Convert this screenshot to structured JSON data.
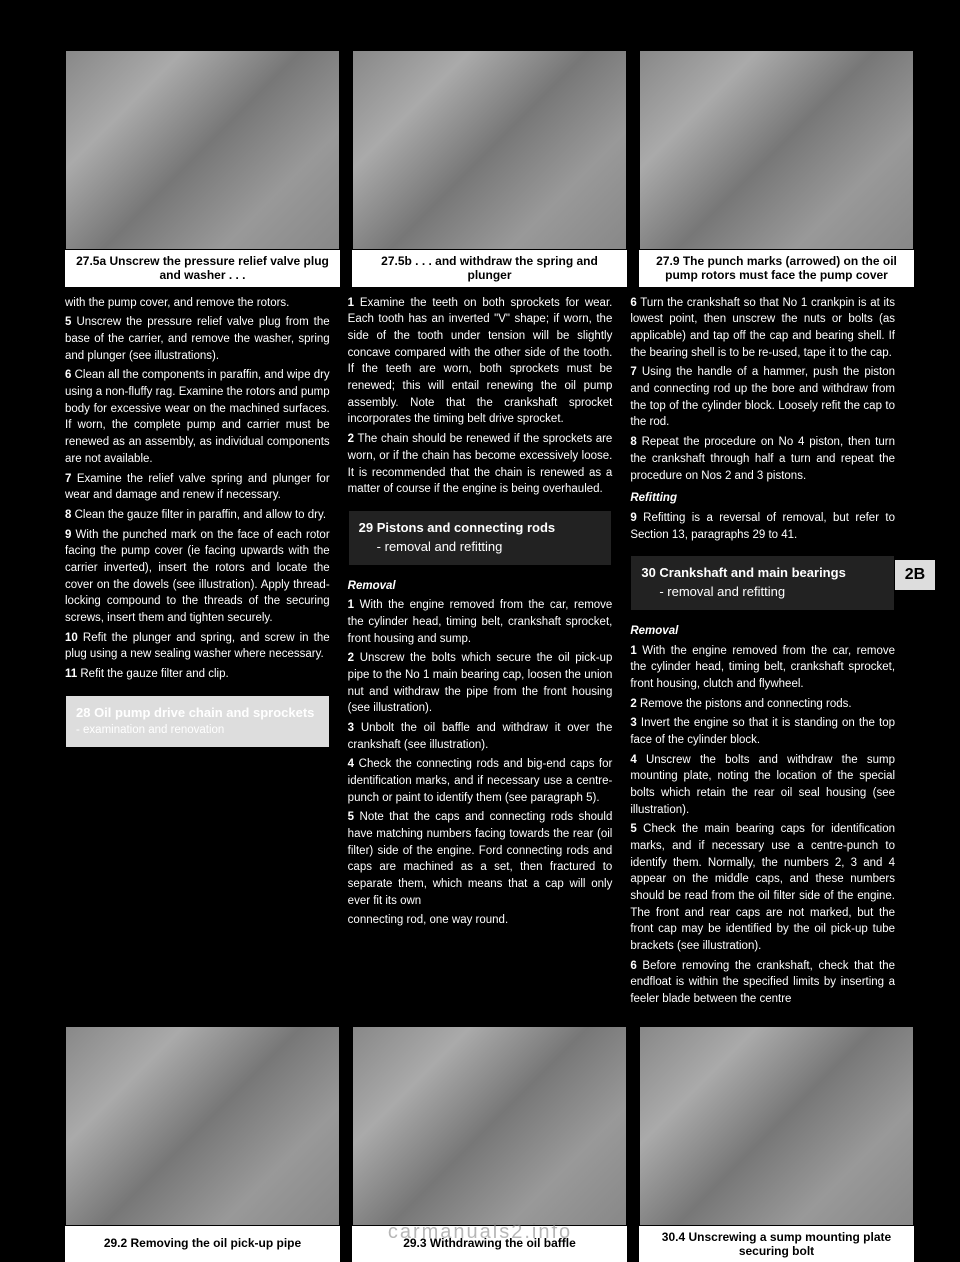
{
  "figures": {
    "top_left": {
      "caption": "27.5a Unscrew the pressure relief valve plug and washer . . ."
    },
    "top_mid": {
      "caption": "27.5b . . . and withdraw the spring and plunger"
    },
    "top_right": {
      "caption": "27.9 The punch marks (arrowed) on the oil pump rotors must face the pump cover"
    },
    "bot_left": {
      "caption": "29.2 Removing the oil pick-up pipe"
    },
    "bot_mid": {
      "caption": "29.3 Withdrawing the oil baffle"
    },
    "bot_right": {
      "caption": "30.4 Unscrewing a sump mounting plate securing bolt"
    }
  },
  "sections": {
    "s28": {
      "title": "28  Oil pump drive chain and sprockets",
      "sub": " - examination and renovation"
    },
    "s29": {
      "title": "29  Pistons and connecting rods",
      "sub": "- removal and refitting"
    },
    "s30": {
      "title": "30  Crankshaft and main bearings",
      "sub": "- removal and refitting"
    }
  },
  "side_tab": "2B",
  "watermark": "carmanuals2.info",
  "col1": {
    "p1": "with the pump cover, and remove the rotors.",
    "p2_label": "5",
    "p2": "Unscrew the pressure relief valve plug from the base of the carrier, and remove the washer, spring and plunger (see illustrations).",
    "p3_label": "6",
    "p3": "Clean all the components in paraffin, and wipe dry using a non-fluffy rag. Examine the rotors and pump body for excessive wear on the machined surfaces. If worn, the complete pump and carrier must be renewed as an assembly, as individual components are not available.",
    "p4_label": "7",
    "p4": "Examine the relief valve spring and plunger for wear and damage and renew if necessary.",
    "p5_label": "8",
    "p5": "Clean the gauze filter in paraffin, and allow to dry.",
    "p6_label": "9",
    "p6": "With the punched mark on the face of each rotor facing the pump cover (ie facing upwards with the carrier inverted), insert the rotors and locate the cover on the dowels (see illustration). Apply thread-locking compound to the threads of the securing screws, insert them and tighten securely.",
    "p7_label": "10",
    "p7": "Refit the plunger and spring, and screw in the plug using a new sealing washer where necessary.",
    "p8_label": "11",
    "p8": "Refit the gauze filter and clip."
  },
  "col2": {
    "p1_label": "1",
    "p1": "Examine the teeth on both sprockets for wear. Each tooth has an inverted \"V\" shape; if worn, the side of the tooth under tension will be slightly concave compared with the other side of the tooth. If the teeth are worn, both sprockets must be renewed; this will entail renewing the oil pump assembly. Note that the crankshaft sprocket incorporates the timing belt drive sprocket.",
    "p2_label": "2",
    "p2": "The chain should be renewed if the sprockets are worn, or if the chain has become excessively loose. It is recommended that the chain is renewed as a matter of course if the engine is being overhauled.",
    "removal_head": "Removal",
    "p3_label": "1",
    "p3": "With the engine removed from the car, remove the cylinder head, timing belt, crankshaft sprocket, front housing and sump.",
    "p4_label": "2",
    "p4": "Unscrew the bolts which secure the oil pick-up pipe to the No 1 main bearing cap, loosen the union nut and withdraw the pipe from the front housing (see illustration).",
    "p5_label": "3",
    "p5": "Unbolt the oil baffle and withdraw it over the crankshaft (see illustration).",
    "p6_label": "4",
    "p6": "Check the connecting rods and big-end caps for identification marks, and if necessary use a centre-punch or paint to identify them (see paragraph 5).",
    "p7_label": "5",
    "p7": "Note that the caps and connecting rods should have matching numbers facing towards the rear (oil filter) side of the engine. Ford connecting rods and caps are machined as a set, then fractured to separate them, which means that a cap will only ever fit its own",
    "p8": "connecting rod, one way round."
  },
  "col3": {
    "p1_label": "6",
    "p1": "Turn the crankshaft so that No 1 crankpin is at its lowest point, then unscrew the nuts or bolts (as applicable) and tap off the cap and bearing shell. If the bearing shell is to be re-used, tape it to the cap.",
    "p2_label": "7",
    "p2": "Using the handle of a hammer, push the piston and connecting rod up the bore and withdraw from the top of the cylinder block. Loosely refit the cap to the rod.",
    "p3_label": "8",
    "p3": "Repeat the procedure on No 4 piston, then turn the crankshaft through half a turn and repeat the procedure on Nos 2 and 3 pistons.",
    "refitting_head": "Refitting",
    "p4_label": "9",
    "p4": "Refitting is a reversal of removal, but refer to Section 13, paragraphs 29 to 41.",
    "removal_head": "Removal",
    "p5_label": "1",
    "p5": "With the engine removed from the car, remove the cylinder head, timing belt, crankshaft sprocket, front housing, clutch and flywheel.",
    "p6_label": "2",
    "p6": "Remove the pistons and connecting rods.",
    "p7_label": "3",
    "p7": "Invert the engine so that it is standing on the top face of the cylinder block.",
    "p8_label": "4",
    "p8": "Unscrew the bolts and withdraw the sump mounting plate, noting the location of the special bolts which retain the rear oil seal housing (see illustration).",
    "p9_label": "5",
    "p9": "Check the main bearing caps for identification marks, and if necessary use a centre-punch to identify them. Normally, the numbers 2, 3 and 4 appear on the middle caps, and these numbers should be read from the oil filter side of the engine. The front and rear caps are not marked, but the front cap may be identified by the oil pick-up tube brackets (see illustration).",
    "p10_label": "6",
    "p10": "Before removing the crankshaft, check that the endfloat is within the specified limits by inserting a feeler blade between the centre"
  }
}
